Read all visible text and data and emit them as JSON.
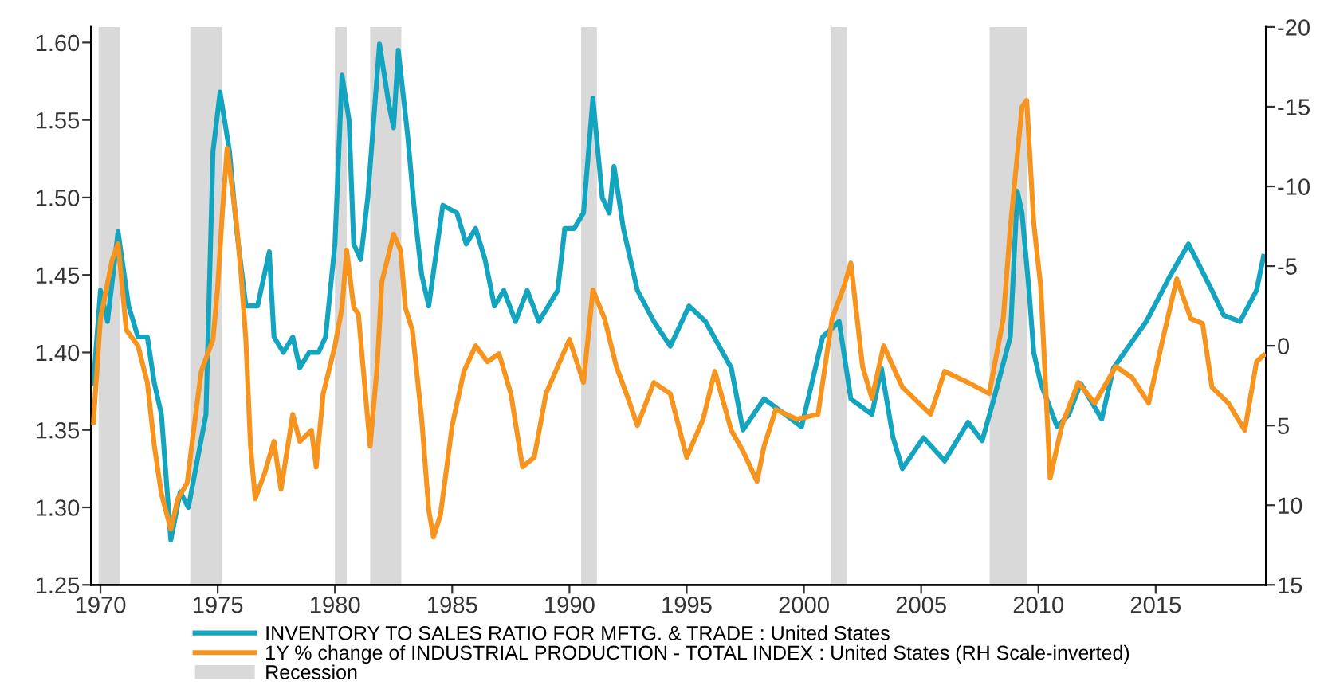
{
  "chart_data": {
    "type": "line",
    "xlim": [
      1969.6,
      2019.7
    ],
    "xticks": [
      1970,
      1975,
      1980,
      1985,
      1990,
      1995,
      2000,
      2005,
      2010,
      2015
    ],
    "ylim": [
      1.25,
      1.61
    ],
    "yticks": [
      {
        "value": 1.25,
        "label": "1.25"
      },
      {
        "value": 1.3,
        "label": "1.30"
      },
      {
        "value": 1.35,
        "label": "1.35"
      },
      {
        "value": 1.4,
        "label": "1.40"
      },
      {
        "value": 1.45,
        "label": "1.45"
      },
      {
        "value": 1.5,
        "label": "1.50"
      },
      {
        "value": 1.55,
        "label": "1.55"
      },
      {
        "value": 1.6,
        "label": "1.60"
      }
    ],
    "y2lim": [
      15,
      -20
    ],
    "y2ticks": [
      -20,
      -15,
      -10,
      -5,
      0,
      5,
      10,
      15
    ],
    "grid": false,
    "legend": "bottom",
    "marker": "none",
    "line_style": "solid",
    "series": [
      {
        "name": "INVENTORY TO SALES RATIO FOR MFTG. & TRADE : United States",
        "color": "#13a4c0",
        "x": [
          1969.7,
          1970.0,
          1970.3,
          1970.75,
          1971.2,
          1971.6,
          1972.0,
          1972.3,
          1972.6,
          1973.0,
          1973.4,
          1973.75,
          1974.5,
          1974.8,
          1975.1,
          1975.5,
          1975.8,
          1976.2,
          1976.7,
          1977.2,
          1977.4,
          1977.8,
          1978.2,
          1978.5,
          1978.9,
          1979.3,
          1979.6,
          1979.8,
          1980.0,
          1980.3,
          1980.6,
          1980.8,
          1981.1,
          1981.4,
          1981.9,
          1982.3,
          1982.5,
          1982.7,
          1983.1,
          1983.4,
          1983.7,
          1984.0,
          1984.6,
          1985.2,
          1985.6,
          1986.0,
          1986.4,
          1986.8,
          1987.2,
          1987.7,
          1988.2,
          1988.7,
          1989.1,
          1989.5,
          1989.8,
          1990.2,
          1990.6,
          1991.0,
          1991.4,
          1991.7,
          1991.9,
          1992.3,
          1992.9,
          1993.6,
          1994.3,
          1995.1,
          1995.8,
          1996.9,
          1997.4,
          1998.3,
          1999.2,
          1999.9,
          2000.8,
          2001.5,
          2002.0,
          2002.9,
          2003.3,
          2003.8,
          2004.2,
          2005.1,
          2006.0,
          2007.0,
          2007.6,
          2008.1,
          2008.8,
          2009.1,
          2009.3,
          2009.6,
          2009.8,
          2010.1,
          2010.8,
          2011.3,
          2011.8,
          2012.7,
          2013.2,
          2014.6,
          2015.6,
          2016.4,
          2017.4,
          2017.9,
          2018.6,
          2019.3,
          2019.6
        ],
        "values": [
          1.38,
          1.44,
          1.42,
          1.478,
          1.43,
          1.41,
          1.41,
          1.38,
          1.36,
          1.279,
          1.31,
          1.3,
          1.36,
          1.53,
          1.568,
          1.53,
          1.48,
          1.43,
          1.43,
          1.465,
          1.41,
          1.4,
          1.41,
          1.39,
          1.4,
          1.4,
          1.41,
          1.44,
          1.47,
          1.579,
          1.55,
          1.47,
          1.46,
          1.5,
          1.599,
          1.56,
          1.545,
          1.595,
          1.54,
          1.49,
          1.45,
          1.43,
          1.495,
          1.49,
          1.47,
          1.48,
          1.46,
          1.43,
          1.44,
          1.42,
          1.44,
          1.42,
          1.43,
          1.44,
          1.48,
          1.48,
          1.49,
          1.564,
          1.5,
          1.49,
          1.52,
          1.48,
          1.44,
          1.42,
          1.404,
          1.43,
          1.42,
          1.39,
          1.35,
          1.37,
          1.36,
          1.352,
          1.41,
          1.42,
          1.37,
          1.36,
          1.39,
          1.345,
          1.325,
          1.345,
          1.33,
          1.355,
          1.343,
          1.37,
          1.41,
          1.504,
          1.49,
          1.44,
          1.4,
          1.38,
          1.352,
          1.36,
          1.38,
          1.357,
          1.39,
          1.42,
          1.449,
          1.47,
          1.44,
          1.424,
          1.42,
          1.44,
          1.462
        ]
      },
      {
        "name": "1Y % change of INDUSTRIAL PRODUCTION - TOTAL INDEX : United States (RH Scale-inverted)",
        "color": "#f7941d",
        "axis": "y2",
        "x": [
          1969.7,
          1970.0,
          1970.5,
          1970.75,
          1971.1,
          1971.6,
          1972.0,
          1972.3,
          1972.6,
          1973.0,
          1973.3,
          1973.7,
          1974.0,
          1974.3,
          1974.8,
          1975.0,
          1975.2,
          1975.4,
          1975.8,
          1976.0,
          1976.2,
          1976.4,
          1976.6,
          1977.0,
          1977.4,
          1977.7,
          1978.2,
          1978.5,
          1979.0,
          1979.2,
          1979.5,
          1980.0,
          1980.3,
          1980.5,
          1980.8,
          1981.0,
          1981.3,
          1981.5,
          1981.8,
          1982.0,
          1982.5,
          1982.8,
          1983.0,
          1983.3,
          1983.7,
          1984.0,
          1984.2,
          1984.5,
          1985.0,
          1985.5,
          1986.0,
          1986.5,
          1987.0,
          1987.5,
          1988.0,
          1988.5,
          1989.0,
          1989.5,
          1990.0,
          1990.6,
          1991.0,
          1991.5,
          1992.0,
          1992.5,
          1992.9,
          1993.6,
          1994.3,
          1995.0,
          1995.7,
          1996.2,
          1996.9,
          1997.4,
          1998.0,
          1998.3,
          1998.8,
          1999.7,
          2000.6,
          2001.2,
          2001.7,
          2002.0,
          2002.5,
          2002.9,
          2003.4,
          2004.2,
          2005.4,
          2006.0,
          2007.0,
          2007.9,
          2008.5,
          2008.8,
          2009.3,
          2009.5,
          2009.8,
          2010.1,
          2010.5,
          2011.0,
          2011.7,
          2012.4,
          2013.3,
          2014.0,
          2014.7,
          2015.3,
          2015.9,
          2016.5,
          2017.0,
          2017.4,
          2018.1,
          2018.8,
          2019.3,
          2019.6
        ],
        "values": [
          4.8,
          -1.7,
          -5.4,
          -6.4,
          -1.0,
          0.0,
          2.3,
          6.3,
          9.3,
          11.5,
          9.6,
          8.6,
          5.0,
          1.6,
          -0.4,
          -3.7,
          -8.4,
          -12.4,
          -7.7,
          -4.4,
          -0.4,
          6.3,
          9.6,
          8.0,
          6.0,
          9.0,
          4.3,
          6.0,
          5.3,
          7.6,
          3.0,
          0.0,
          -2.4,
          -6.0,
          -2.4,
          -2.0,
          3.0,
          6.3,
          1.3,
          -4.0,
          -7.0,
          -6.0,
          -2.4,
          -1.0,
          4.6,
          10.3,
          12.0,
          10.6,
          5.0,
          1.6,
          0.0,
          1.0,
          0.5,
          3.0,
          7.6,
          7.0,
          3.0,
          1.3,
          -0.4,
          2.3,
          -3.5,
          -1.7,
          1.3,
          3.3,
          5.0,
          2.3,
          3.0,
          7.0,
          4.6,
          1.6,
          5.3,
          6.6,
          8.5,
          6.3,
          4.0,
          4.6,
          4.3,
          -1.7,
          -3.7,
          -5.2,
          1.3,
          3.3,
          0.0,
          2.6,
          4.3,
          1.6,
          2.3,
          3.0,
          -1.7,
          -7.4,
          -15.0,
          -15.4,
          -7.7,
          -3.7,
          8.3,
          5.0,
          2.3,
          3.6,
          1.3,
          2.0,
          3.6,
          -0.4,
          -4.2,
          -1.7,
          -1.4,
          2.6,
          3.6,
          5.3,
          1.0,
          0.6
        ]
      }
    ],
    "bands": [
      {
        "axis": "x",
        "from": 1969.92,
        "to": 1970.83,
        "label": "Recession",
        "color": "#d9d9d9"
      },
      {
        "axis": "x",
        "from": 1973.83,
        "to": 1975.17,
        "color": "#d9d9d9"
      },
      {
        "axis": "x",
        "from": 1980.0,
        "to": 1980.5,
        "color": "#d9d9d9"
      },
      {
        "axis": "x",
        "from": 1981.5,
        "to": 1982.83,
        "color": "#d9d9d9"
      },
      {
        "axis": "x",
        "from": 1990.5,
        "to": 1991.17,
        "color": "#d9d9d9"
      },
      {
        "axis": "x",
        "from": 2001.17,
        "to": 2001.83,
        "color": "#d9d9d9"
      },
      {
        "axis": "x",
        "from": 2007.92,
        "to": 2009.5,
        "color": "#d9d9d9"
      }
    ]
  }
}
